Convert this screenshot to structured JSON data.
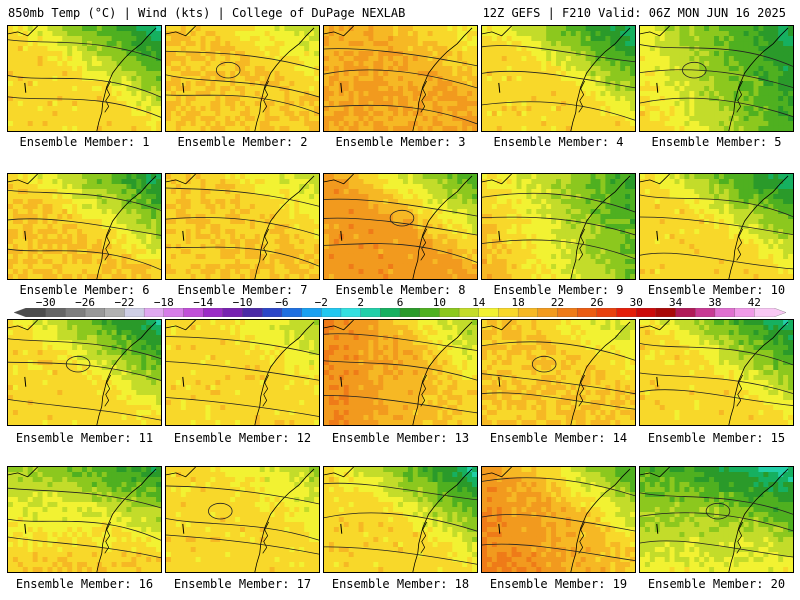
{
  "header": {
    "title_left": "850mb Temp (°C) | Wind (kts) | College of DuPage NEXLAB",
    "title_right": "12Z GEFS | F210 Valid: 06Z MON JUN 16 2025"
  },
  "panels": [
    {
      "label": "Ensemble Member: 1",
      "temp_base": 15,
      "gradient": "ne_cool"
    },
    {
      "label": "Ensemble Member: 2",
      "temp_base": 17,
      "gradient": "uniform_warm"
    },
    {
      "label": "Ensemble Member: 3",
      "temp_base": 19,
      "gradient": "uniform_warm"
    },
    {
      "label": "Ensemble Member: 4",
      "temp_base": 15,
      "gradient": "ne_cool"
    },
    {
      "label": "Ensemble Member: 5",
      "temp_base": 13,
      "gradient": "east_cool"
    },
    {
      "label": "Ensemble Member: 6",
      "temp_base": 16,
      "gradient": "ne_cool"
    },
    {
      "label": "Ensemble Member: 7",
      "temp_base": 17,
      "gradient": "uniform_warm"
    },
    {
      "label": "Ensemble Member: 8",
      "temp_base": 19,
      "gradient": "ne_cool"
    },
    {
      "label": "Ensemble Member: 9",
      "temp_base": 15,
      "gradient": "east_cool"
    },
    {
      "label": "Ensemble Member: 10",
      "temp_base": 15,
      "gradient": "ne_cool"
    },
    {
      "label": "Ensemble Member: 11",
      "temp_base": 15,
      "gradient": "ne_cool"
    },
    {
      "label": "Ensemble Member: 12",
      "temp_base": 16,
      "gradient": "uniform_warm"
    },
    {
      "label": "Ensemble Member: 13",
      "temp_base": 19,
      "gradient": "west_hot"
    },
    {
      "label": "Ensemble Member: 14",
      "temp_base": 17,
      "gradient": "uniform_warm"
    },
    {
      "label": "Ensemble Member: 15",
      "temp_base": 15,
      "gradient": "ne_cool"
    },
    {
      "label": "Ensemble Member: 16",
      "temp_base": 14,
      "gradient": "north_cool"
    },
    {
      "label": "Ensemble Member: 17",
      "temp_base": 16,
      "gradient": "uniform_warm"
    },
    {
      "label": "Ensemble Member: 18",
      "temp_base": 15,
      "gradient": "ne_cool"
    },
    {
      "label": "Ensemble Member: 19",
      "temp_base": 18,
      "gradient": "sw_hot"
    },
    {
      "label": "Ensemble Member: 20",
      "temp_base": 11,
      "gradient": "north_cool"
    }
  ],
  "colorbar": {
    "tick_labels": [
      "−30",
      "−26",
      "−22",
      "−18",
      "−14",
      "−10",
      "−6",
      "−2",
      "2",
      "6",
      "10",
      "14",
      "18",
      "22",
      "26",
      "30",
      "34",
      "38",
      "42"
    ],
    "range": [
      -32,
      44
    ],
    "step": 2,
    "colors": [
      "#4d4d4d",
      "#666666",
      "#7f7f7f",
      "#999999",
      "#b2b2b2",
      "#cfcfe6",
      "#e0a8f0",
      "#d67de8",
      "#c04fd8",
      "#9b2cc6",
      "#7722b0",
      "#4b2aa6",
      "#2c46c8",
      "#1f6fe0",
      "#1aa0f0",
      "#22c8f0",
      "#33e0e0",
      "#22cfa8",
      "#16b060",
      "#2a9a2a",
      "#4fb020",
      "#8cc81e",
      "#c3dc2a",
      "#f2f232",
      "#f8d82a",
      "#f6b824",
      "#f29a1e",
      "#ef7b18",
      "#eb5c12",
      "#e8410e",
      "#e41e0a",
      "#cc0a0a",
      "#a80808",
      "#b01a58",
      "#c83a94",
      "#e070d0",
      "#f09ae8",
      "#f8c8f4"
    ]
  }
}
